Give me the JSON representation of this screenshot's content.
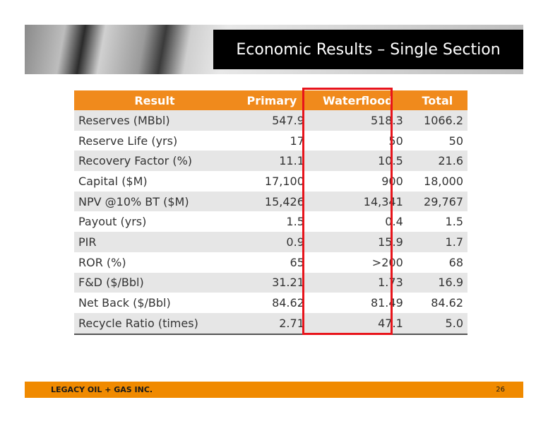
{
  "header": {
    "title": "Economic Results – Single Section"
  },
  "table": {
    "columns": [
      "Result",
      "Primary",
      "Waterflood",
      "Total"
    ],
    "rows": [
      [
        "Reserves (MBbl)",
        "547.9",
        "518.3",
        "1066.2"
      ],
      [
        "Reserve Life (yrs)",
        "17",
        "50",
        "50"
      ],
      [
        "Recovery Factor (%)",
        "11.1",
        "10.5",
        "21.6"
      ],
      [
        "Capital ($M)",
        "17,100",
        "900",
        "18,000"
      ],
      [
        "NPV @10% BT ($M)",
        "15,426",
        "14,341",
        "29,767"
      ],
      [
        "Payout (yrs)",
        "1.5",
        "0.4",
        "1.5"
      ],
      [
        "PIR",
        "0.9",
        "15.9",
        "1.7"
      ],
      [
        "ROR (%)",
        "65",
        ">200",
        "68"
      ],
      [
        "F&D ($/Bbl)",
        "31.21",
        "1.73",
        "16.9"
      ],
      [
        "Net Back ($/Bbl)",
        "84.62",
        "81.49",
        "84.62"
      ],
      [
        "Recycle Ratio (times)",
        "2.71",
        "47.1",
        "5.0"
      ]
    ]
  },
  "footer": {
    "company": "LEGACY OIL + GAS INC.",
    "page": "26"
  }
}
